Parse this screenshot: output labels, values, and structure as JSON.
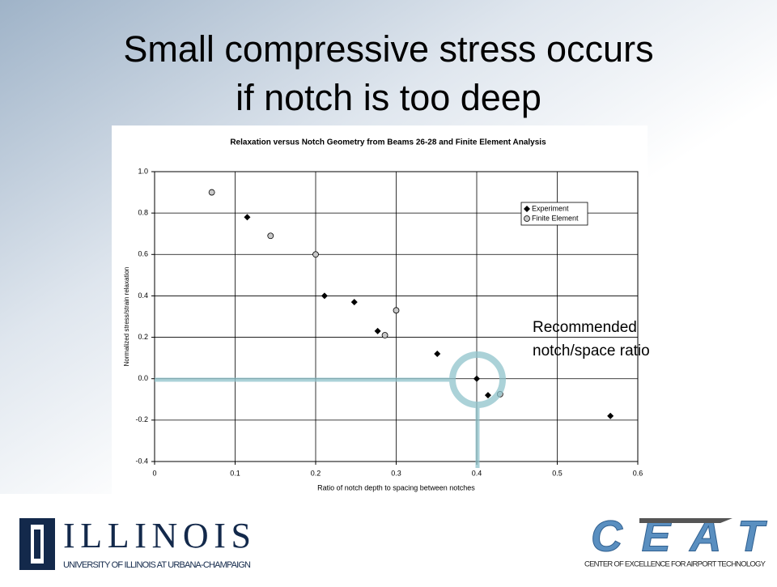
{
  "slide_title": [
    "Small compressive stress occurs",
    "if notch is too deep"
  ],
  "annotation": [
    "Recommended",
    "notch/space ratio"
  ],
  "logo_left": {
    "name": "ILLINOIS",
    "subtitle": "UNIVERSITY OF ILLINOIS AT URBANA-CHAMPAIGN"
  },
  "logo_right": {
    "subtitle": "CENTER OF EXCELLENCE FOR AIRPORT TECHNOLOGY"
  },
  "chart_data": {
    "type": "scatter",
    "title": "Relaxation versus Notch Geometry from Beams 26-28 and Finite Element Analysis",
    "x_label": "Ratio of notch depth to spacing between notches",
    "y_label": "Normalized stress/strain relaxation",
    "xlim": [
      0,
      0.6
    ],
    "xticks": [
      0,
      0.1,
      0.2,
      0.3,
      0.4,
      0.5,
      0.6
    ],
    "ylim": [
      -0.4,
      1.0
    ],
    "yticks": [
      {
        "value": 1.0,
        "label": "1.0"
      },
      {
        "value": 0.8,
        "label": "0.8"
      },
      {
        "value": 0.6,
        "label": "0.6"
      },
      {
        "value": 0.4,
        "label": "0.4"
      },
      {
        "value": 0.2,
        "label": "0.2"
      },
      {
        "value": 0.0,
        "label": "0.0"
      },
      {
        "value": -0.2,
        "label": "-0.2"
      },
      {
        "value": -0.4,
        "label": "-0.4"
      }
    ],
    "grid": true,
    "legend": "upper right",
    "series": [
      {
        "name": "Experiment",
        "color": "#000000",
        "marker": "diamond",
        "x": [
          0.115,
          0.211,
          0.248,
          0.277,
          0.351,
          0.4,
          0.414,
          0.566
        ],
        "values": [
          0.78,
          0.4,
          0.37,
          0.23,
          0.12,
          0.0,
          -0.08,
          -0.18
        ]
      },
      {
        "name": "Finite Element",
        "color": "#c8c8c8",
        "marker": "circle",
        "x": [
          0.071,
          0.144,
          0.2,
          0.286,
          0.3,
          0.429
        ],
        "values": [
          0.9,
          0.69,
          0.6,
          0.21,
          0.33,
          -0.075
        ]
      }
    ]
  }
}
